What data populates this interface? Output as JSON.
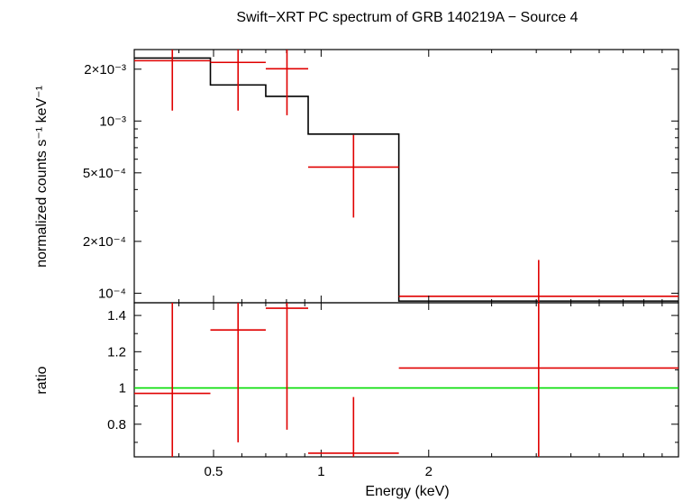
{
  "chart_data": [
    {
      "type": "line",
      "title": "Swift−XRT PC spectrum of GRB 140219A − Source 4",
      "ylabel": "normalized counts s⁻¹ keV⁻¹",
      "xscale": "log",
      "yscale": "log",
      "xlim": [
        0.3,
        10
      ],
      "ylim": [
        8.8e-05,
        0.0026
      ],
      "yticks": [
        {
          "value": 0.002,
          "label": "2×10⁻³"
        },
        {
          "value": 0.001,
          "label": "10⁻³"
        },
        {
          "value": 0.0005,
          "label": "5×10⁻⁴"
        },
        {
          "value": 0.0002,
          "label": "2×10⁻⁴"
        },
        {
          "value": 0.0001,
          "label": "10⁻⁴"
        }
      ],
      "series": [
        {
          "kind": "data",
          "color": "#e00000",
          "points": [
            {
              "xlo": 0.3,
              "xhi": 0.49,
              "y": 0.00224,
              "ylo": 0.00115,
              "yhi": 0.0026
            },
            {
              "xlo": 0.49,
              "xhi": 0.7,
              "y": 0.00219,
              "ylo": 0.00115,
              "yhi": 0.0026
            },
            {
              "xlo": 0.7,
              "xhi": 0.92,
              "y": 0.00201,
              "ylo": 0.00108,
              "yhi": 0.0026
            },
            {
              "xlo": 0.92,
              "xhi": 1.65,
              "y": 0.00054,
              "ylo": 0.000275,
              "yhi": 0.00083
            },
            {
              "xlo": 1.65,
              "xhi": 10.0,
              "y": 9.6e-05,
              "ylo": 8.8e-05,
              "yhi": 0.000156
            }
          ]
        },
        {
          "kind": "model",
          "color": "#000000",
          "steps": [
            {
              "xlo": 0.3,
              "xhi": 0.49,
              "y": 0.00232
            },
            {
              "xlo": 0.49,
              "xhi": 0.7,
              "y": 0.00162
            },
            {
              "xlo": 0.7,
              "xhi": 0.92,
              "y": 0.00139
            },
            {
              "xlo": 0.92,
              "xhi": 1.65,
              "y": 0.00084
            },
            {
              "xlo": 1.65,
              "xhi": 10.0,
              "y": 9e-05
            }
          ]
        }
      ]
    },
    {
      "type": "line",
      "xlabel": "Energy (keV)",
      "ylabel": "ratio",
      "xscale": "log",
      "xlim": [
        0.3,
        10
      ],
      "ylim": [
        0.62,
        1.47
      ],
      "xticks": [
        {
          "value": 0.5,
          "label": "0.5"
        },
        {
          "value": 1,
          "label": "1"
        },
        {
          "value": 2,
          "label": "2"
        }
      ],
      "yticks": [
        {
          "value": 1.4,
          "label": "1.4"
        },
        {
          "value": 1.2,
          "label": "1.2"
        },
        {
          "value": 1.0,
          "label": "1"
        },
        {
          "value": 0.8,
          "label": "0.8"
        }
      ],
      "reference_line": {
        "y": 1.0,
        "color": "#00dd00"
      },
      "series": [
        {
          "kind": "ratio",
          "color": "#e00000",
          "points": [
            {
              "xlo": 0.3,
              "xhi": 0.49,
              "y": 0.97,
              "ylo": 0.62,
              "yhi": 1.47
            },
            {
              "xlo": 0.49,
              "xhi": 0.7,
              "y": 1.32,
              "ylo": 0.7,
              "yhi": 1.47
            },
            {
              "xlo": 0.7,
              "xhi": 0.92,
              "y": 1.44,
              "ylo": 0.77,
              "yhi": 1.47
            },
            {
              "xlo": 0.92,
              "xhi": 1.65,
              "y": 0.64,
              "ylo": 0.62,
              "yhi": 0.95
            },
            {
              "xlo": 1.65,
              "xhi": 10.0,
              "y": 1.11,
              "ylo": 0.62,
              "yhi": 1.47
            }
          ]
        }
      ]
    }
  ]
}
